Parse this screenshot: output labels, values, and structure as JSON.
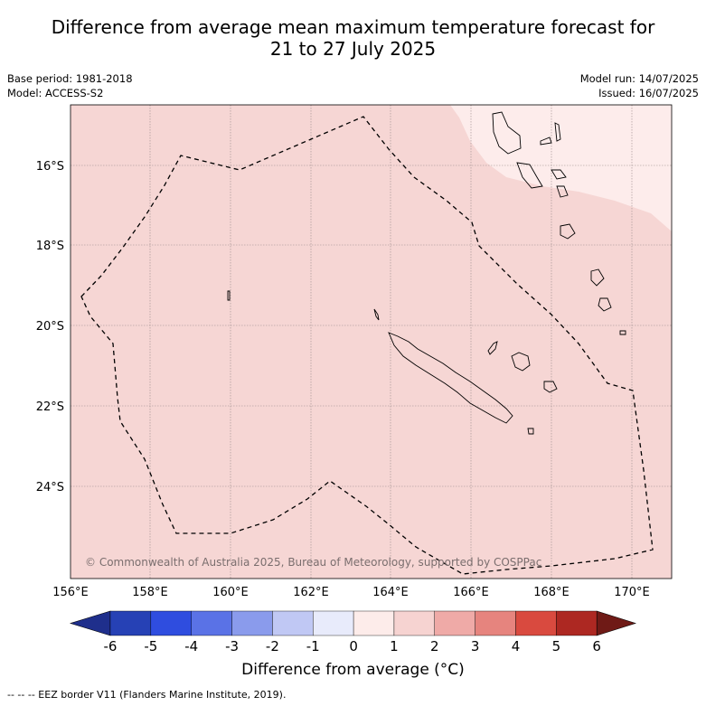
{
  "title_line1": "Difference from average mean maximum temperature forecast for",
  "title_line2": "21 to 27 July 2025",
  "base_period": "Base period: 1981-2018",
  "model": "Model: ACCESS-S2",
  "model_run": "Model run: 14/07/2025",
  "issued": "Issued: 16/07/2025",
  "lat_labels": [
    "16°S",
    "18°S",
    "20°S",
    "22°S",
    "24°S"
  ],
  "lon_labels": [
    "156°E",
    "158°E",
    "160°E",
    "162°E",
    "164°E",
    "166°E",
    "168°E",
    "170°E"
  ],
  "copyright": "© Commonwealth of Australia 2025, Bureau of Meteorology, supported by COSPPac",
  "colorbar": {
    "ticks": [
      "-6",
      "-5",
      "-4",
      "-3",
      "-2",
      "-1",
      "0",
      "1",
      "2",
      "3",
      "4",
      "5",
      "6"
    ],
    "colors": [
      "#1f2f8c",
      "#2641b5",
      "#2f4ddf",
      "#5a72e6",
      "#8a9bec",
      "#c0c8f4",
      "#e8ebfb",
      "#fdecea",
      "#f6d3d1",
      "#efaaa7",
      "#e6847e",
      "#d94a3f",
      "#ad2822",
      "#6f1a16"
    ],
    "label": "Difference from average (°C)"
  },
  "map_fill_main": "#f6d6d4",
  "map_fill_light": "#fdeceb",
  "footer": "--  --  -- EEZ border V11 (Flanders Marine Institute, 2019)."
}
